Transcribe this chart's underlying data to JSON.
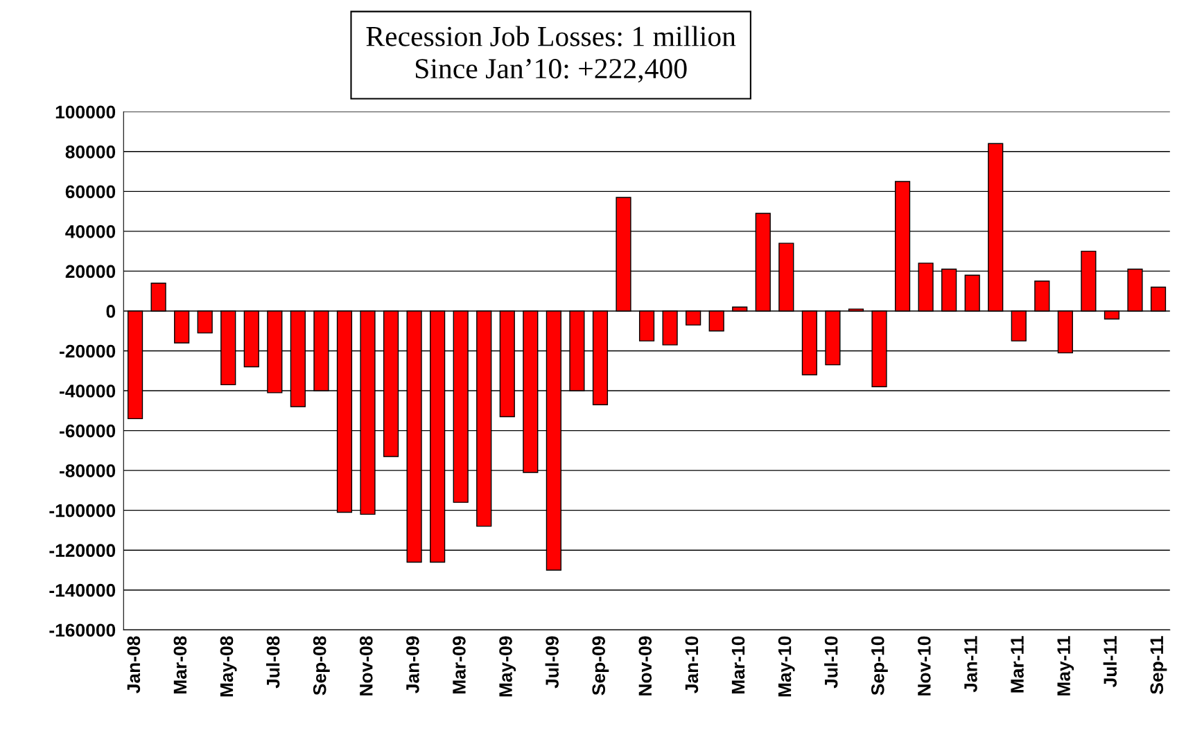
{
  "chart_data": {
    "type": "bar",
    "title": "Recession Job Losses: 1 million\nSince Jan’10: +222,400",
    "categories": [
      "Jan-08",
      null,
      "Mar-08",
      null,
      "May-08",
      null,
      "Jul-08",
      null,
      "Sep-08",
      null,
      "Nov-08",
      null,
      "Jan-09",
      null,
      "Mar-09",
      null,
      "May-09",
      null,
      "Jul-09",
      null,
      "Sep-09",
      null,
      "Nov-09",
      null,
      "Jan-10",
      null,
      "Mar-10",
      null,
      "May-10",
      null,
      "Jul-10",
      null,
      "Sep-10",
      null,
      "Nov-10",
      null,
      "Jan-11",
      null,
      "Mar-11",
      null,
      "May-11",
      null,
      "Jul-11",
      null,
      "Sep-11"
    ],
    "values": [
      -54000,
      14000,
      -16000,
      -11000,
      -37000,
      -28000,
      -41000,
      -48000,
      -40000,
      -101000,
      -102000,
      -73000,
      -126000,
      -126000,
      -96000,
      -108000,
      -53000,
      -81000,
      -130000,
      -40000,
      -47000,
      57000,
      -15000,
      -17000,
      -7000,
      -10000,
      2000,
      49000,
      34000,
      -32000,
      -27000,
      1000,
      -38000,
      65000,
      24000,
      21000,
      18000,
      84000,
      -15000,
      15000,
      -21000,
      30000,
      -4000,
      21000,
      12000
    ],
    "color": "#ff0000",
    "ylim": [
      -160000,
      100000
    ],
    "yticks": [
      -160000,
      -140000,
      -120000,
      -100000,
      -80000,
      -60000,
      -40000,
      -20000,
      0,
      20000,
      40000,
      60000,
      80000,
      100000
    ],
    "grid": "y",
    "legend": false
  }
}
